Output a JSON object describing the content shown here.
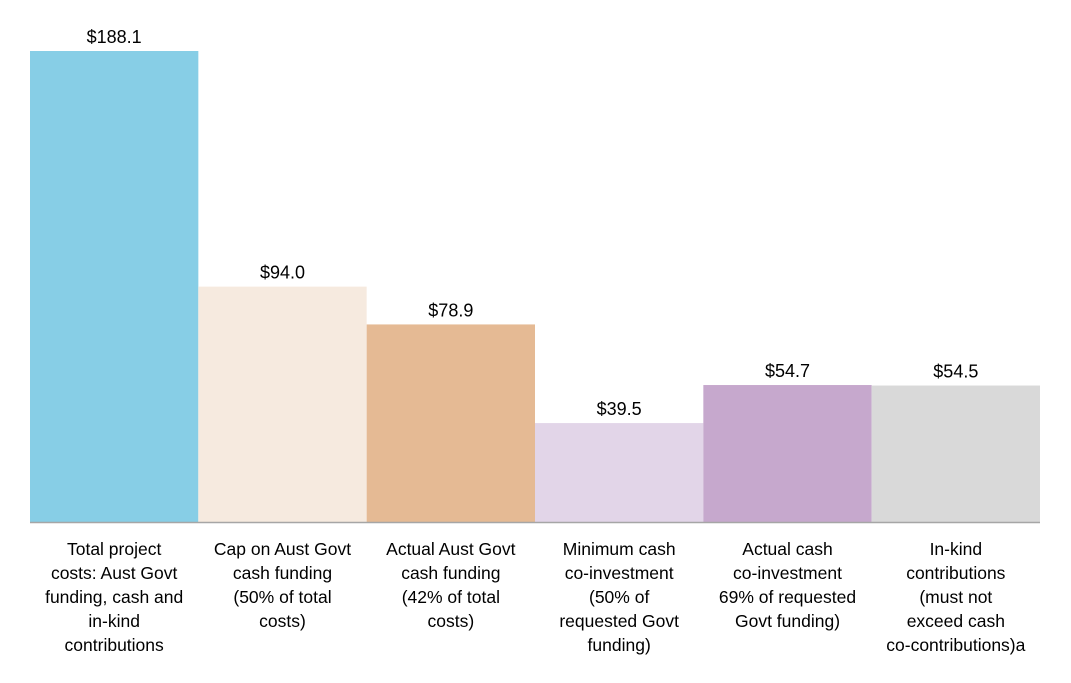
{
  "chart_data": {
    "type": "bar",
    "title": "",
    "xlabel": "",
    "ylabel": "",
    "ylim": [
      0,
      188.1
    ],
    "grid": false,
    "legend": "none",
    "categories": [
      "Total project costs: Aust Govt funding, cash and in-kind contributions",
      "Cap on Aust Govt cash funding (50% of total costs)",
      "Actual Aust Govt cash funding (42% of total costs)",
      "Minimum cash co-investment (50% of requested Govt funding)",
      "Actual cash co-investment 69% of requested Govt funding)",
      "In-kind contributions (must not exceed cash co-contributions)a"
    ],
    "category_lines": [
      [
        "Total project",
        "costs: Aust Govt",
        "funding, cash and",
        "in-kind",
        "contributions"
      ],
      [
        "Cap on Aust Govt",
        "cash funding",
        "(50% of total",
        "costs)"
      ],
      [
        "Actual Aust Govt",
        "cash funding",
        "(42% of total",
        "costs)"
      ],
      [
        "Minimum cash",
        "co-investment",
        "(50% of",
        "requested Govt",
        "funding)"
      ],
      [
        "Actual cash",
        "co-investment",
        "69% of requested",
        "Govt funding)"
      ],
      [
        "In-kind",
        "contributions",
        "(must not",
        "exceed cash",
        "co-contributions)a"
      ]
    ],
    "values": [
      188.1,
      94.0,
      78.9,
      39.5,
      54.7,
      54.5
    ],
    "value_labels": [
      "$188.1",
      "$94.0",
      "$78.9",
      "$39.5",
      "$54.7",
      "$54.5"
    ],
    "colors": [
      "#87CEE6",
      "#F6EADF",
      "#E5BA94",
      "#E2D5E8",
      "#C6A8CD",
      "#D9D9D9"
    ],
    "axis_color": "#A6A6A6"
  }
}
